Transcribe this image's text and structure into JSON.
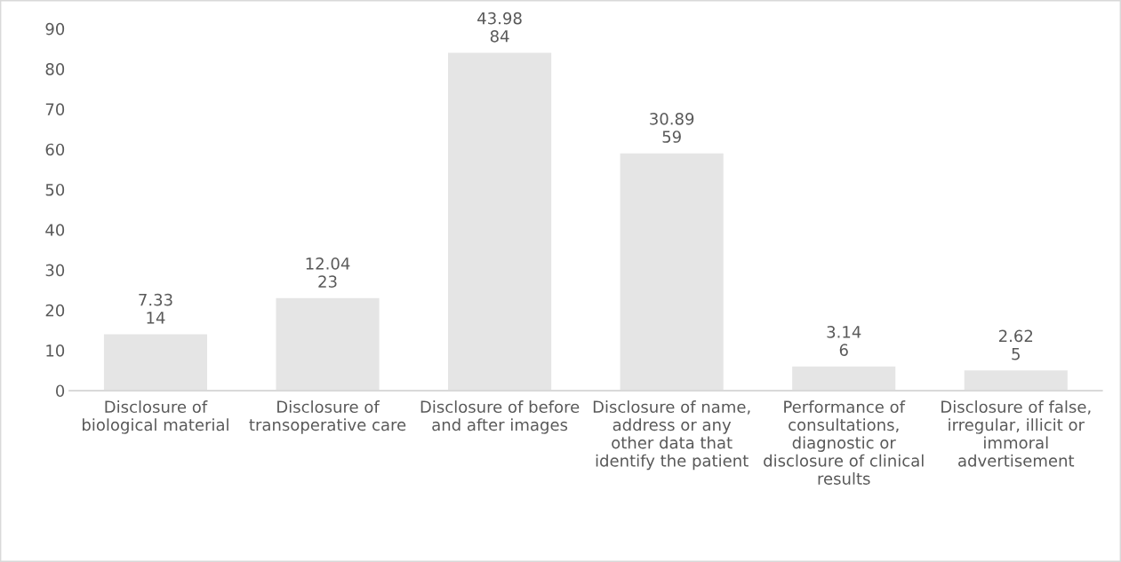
{
  "chart_data": {
    "type": "bar",
    "categories": [
      "Disclosure of\nbiological material",
      "Disclosure of\ntransoperative care",
      "Disclosure of before\nand after images",
      "Disclosure of name,\naddress or any\nother data that\nidentify the patient",
      "Performance of\nconsultations,\ndiagnostic or\ndisclosure of clinical\nresults",
      "Disclosure of false,\nirregular, illicit or\nimmoral\nadvertisement"
    ],
    "values": [
      14,
      23,
      84,
      59,
      6,
      5
    ],
    "value_labels": [
      "7.33\n14",
      "12.04\n23",
      "43.98\n84",
      "30.89\n59",
      "3.14\n6",
      "2.62\n5"
    ],
    "color": "#e5e5e5",
    "ylim": [
      0,
      90
    ],
    "yticks": [
      0,
      10,
      20,
      30,
      40,
      50,
      60,
      70,
      80,
      90
    ],
    "grid": false,
    "legend": false
  }
}
